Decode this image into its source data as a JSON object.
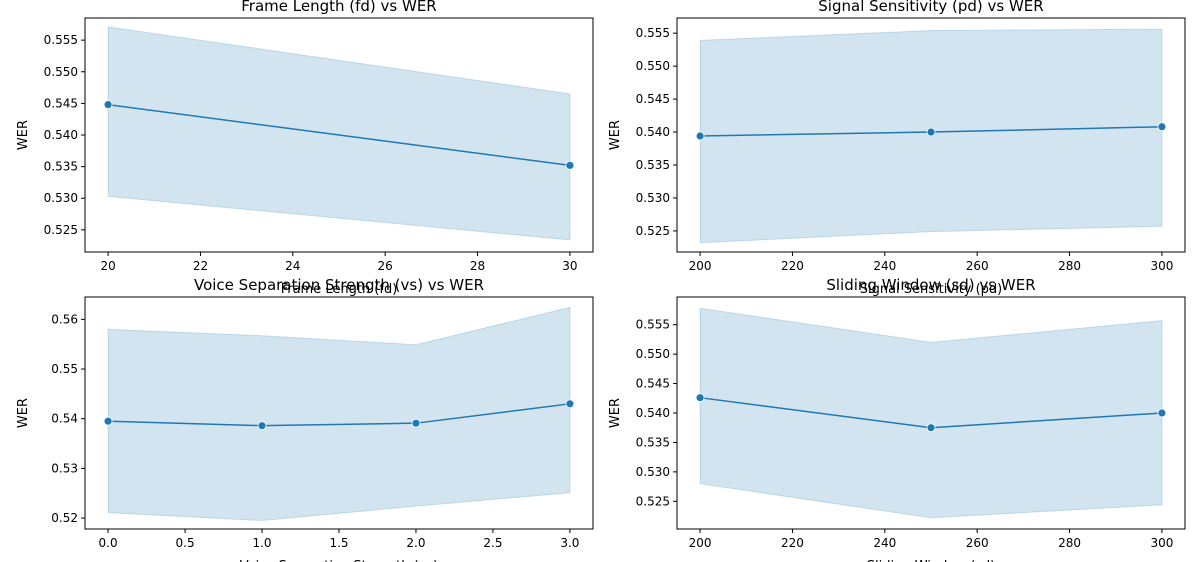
{
  "colors": {
    "line": "#1f77b4",
    "band": "#1f77b4",
    "axis": "#000000"
  },
  "chart_data": [
    {
      "type": "line",
      "title": "Frame Length (fd) vs WER",
      "xlabel": "Frame Length (fd)",
      "ylabel": "WER",
      "x": [
        20,
        30
      ],
      "xlim": [
        19.5,
        30.5
      ],
      "ylim": [
        0.5215,
        0.5585
      ],
      "xticks": [
        20,
        22,
        24,
        26,
        28,
        30
      ],
      "yticks": [
        0.525,
        0.53,
        0.535,
        0.54,
        0.545,
        0.55,
        0.555
      ],
      "xtick_labels": [
        "20",
        "22",
        "24",
        "26",
        "28",
        "30"
      ],
      "ytick_labels": [
        "0.525",
        "0.530",
        "0.535",
        "0.540",
        "0.545",
        "0.550",
        "0.555"
      ],
      "series": [
        {
          "values": [
            0.5448,
            0.5352
          ],
          "ci_low": [
            0.5303,
            0.5234
          ],
          "ci_high": [
            0.5571,
            0.5465
          ]
        }
      ],
      "grid": false,
      "marker": "circle",
      "band": "confidence interval"
    },
    {
      "type": "line",
      "title": "Signal Sensitivity (pd) vs WER",
      "xlabel": "Signal Sensitivity (pd)",
      "ylabel": "WER",
      "x": [
        200,
        250,
        300
      ],
      "xlim": [
        195,
        305
      ],
      "ylim": [
        0.5218,
        0.5573
      ],
      "xticks": [
        200,
        220,
        240,
        260,
        280,
        300
      ],
      "yticks": [
        0.525,
        0.53,
        0.535,
        0.54,
        0.545,
        0.55,
        0.555
      ],
      "xtick_labels": [
        "200",
        "220",
        "240",
        "260",
        "280",
        "300"
      ],
      "ytick_labels": [
        "0.525",
        "0.530",
        "0.535",
        "0.540",
        "0.545",
        "0.550",
        "0.555"
      ],
      "series": [
        {
          "values": [
            0.5394,
            0.54,
            0.5408
          ],
          "ci_low": [
            0.5232,
            0.5249,
            0.5257
          ],
          "ci_high": [
            0.5539,
            0.5554,
            0.5556
          ]
        }
      ],
      "grid": false,
      "marker": "circle",
      "band": "confidence interval"
    },
    {
      "type": "line",
      "title": "Voice Separation Strength (vs) vs WER",
      "xlabel": "Voice Separation Strength (vs)",
      "ylabel": "WER",
      "x": [
        0,
        1,
        2,
        3
      ],
      "xlim": [
        -0.15,
        3.15
      ],
      "ylim": [
        0.5178,
        0.5645
      ],
      "xticks": [
        0,
        0.5,
        1,
        1.5,
        2,
        2.5,
        3
      ],
      "yticks": [
        0.52,
        0.53,
        0.54,
        0.55,
        0.56
      ],
      "xtick_labels": [
        "0.0",
        "0.5",
        "1.0",
        "1.5",
        "2.0",
        "2.5",
        "3.0"
      ],
      "ytick_labels": [
        "0.52",
        "0.53",
        "0.54",
        "0.55",
        "0.56"
      ],
      "series": [
        {
          "values": [
            0.5395,
            0.5386,
            0.5391,
            0.543
          ],
          "ci_low": [
            0.5211,
            0.5195,
            0.5224,
            0.5251
          ],
          "ci_high": [
            0.558,
            0.5567,
            0.5549,
            0.5624
          ]
        }
      ],
      "grid": false,
      "marker": "circle",
      "band": "confidence interval"
    },
    {
      "type": "line",
      "title": "Sliding Window (sd) vs WER",
      "xlabel": "Sliding Window (sd)",
      "ylabel": "WER",
      "x": [
        200,
        250,
        300
      ],
      "xlim": [
        195,
        305
      ],
      "ylim": [
        0.5203,
        0.5597
      ],
      "xticks": [
        200,
        220,
        240,
        260,
        280,
        300
      ],
      "yticks": [
        0.525,
        0.53,
        0.535,
        0.54,
        0.545,
        0.55,
        0.555
      ],
      "xtick_labels": [
        "200",
        "220",
        "240",
        "260",
        "280",
        "300"
      ],
      "ytick_labels": [
        "0.525",
        "0.530",
        "0.535",
        "0.540",
        "0.545",
        "0.550",
        "0.555"
      ],
      "series": [
        {
          "values": [
            0.5426,
            0.5375,
            0.54
          ],
          "ci_low": [
            0.528,
            0.5222,
            0.5244
          ],
          "ci_high": [
            0.5578,
            0.552,
            0.5557
          ]
        }
      ],
      "grid": false,
      "marker": "circle",
      "band": "confidence interval"
    }
  ]
}
